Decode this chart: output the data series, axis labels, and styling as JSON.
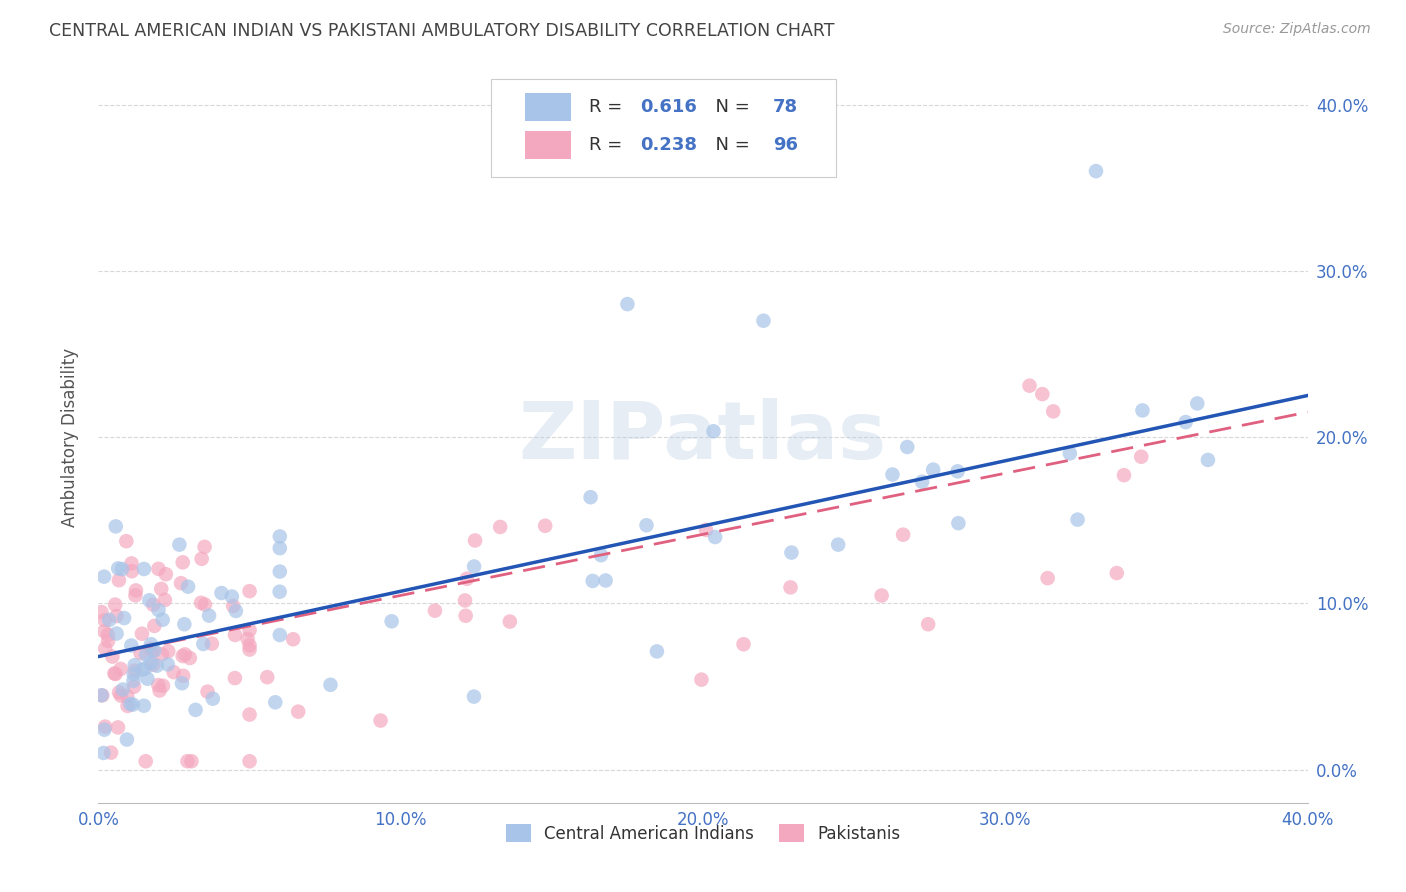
{
  "title": "CENTRAL AMERICAN INDIAN VS PAKISTANI AMBULATORY DISABILITY CORRELATION CHART",
  "source": "Source: ZipAtlas.com",
  "ylabel": "Ambulatory Disability",
  "xlim": [
    0.0,
    0.4
  ],
  "ylim": [
    -0.02,
    0.42
  ],
  "yticks": [
    0.0,
    0.1,
    0.2,
    0.3,
    0.4
  ],
  "ytick_labels": [
    "0.0%",
    "10.0%",
    "20.0%",
    "30.0%",
    "40.0%"
  ],
  "xticks": [
    0.0,
    0.1,
    0.2,
    0.3,
    0.4
  ],
  "xtick_labels": [
    "0.0%",
    "10.0%",
    "20.0%",
    "30.0%",
    "40.0%"
  ],
  "blue_color": "#a8c4e8",
  "pink_color": "#f4a8c0",
  "blue_line_color": "#2355b5",
  "pink_line_color": "#e06080",
  "R_blue": "0.616",
  "N_blue": "78",
  "R_pink": "0.238",
  "N_pink": "96",
  "watermark": "ZIPatlas",
  "background_color": "#ffffff",
  "grid_color": "#d8d8d8",
  "title_color": "#444444",
  "axis_label_color": "#555555",
  "tick_color": "#4472c4",
  "legend_blue_label": "Central American Indians",
  "legend_pink_label": "Pakistanis"
}
